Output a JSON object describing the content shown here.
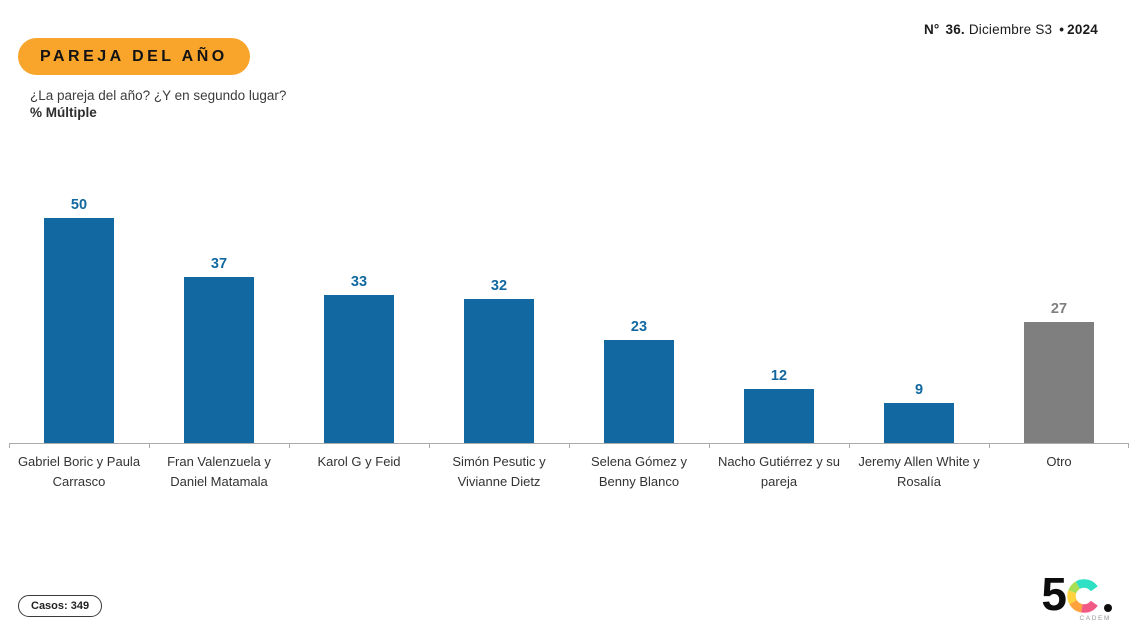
{
  "header": {
    "edition_no": "N°",
    "edition_num": "36.",
    "edition_period": "Diciembre S3",
    "edition_sep": "•",
    "edition_year": "2024",
    "badge": "PAREJA DEL AÑO",
    "question": "¿La pareja del año? ¿Y en segundo lugar?",
    "metric": "% Múltiple"
  },
  "chart_data": {
    "type": "bar",
    "title": "PAREJA DEL AÑO",
    "subtitle": "¿La pareja del año? ¿Y en segundo lugar? — % Múltiple",
    "categories": [
      "Gabriel Boric y Paula Carrasco",
      "Fran Valenzuela y Daniel Matamala",
      "Karol G y Feid",
      "Simón Pesutic y Vivianne Dietz",
      "Selena Gómez y Benny Blanco",
      "Nacho Gutiérrez y su pareja",
      "Jeremy Allen White y Rosalía",
      "Otro"
    ],
    "values": [
      50,
      37,
      33,
      32,
      23,
      12,
      9,
      27
    ],
    "bar_colors": [
      "#1268A0",
      "#1268A0",
      "#1268A0",
      "#1268A0",
      "#1268A0",
      "#1268A0",
      "#1268A0",
      "#7F7F7F"
    ],
    "value_label_colors": [
      "#1268A0",
      "#1268A0",
      "#1268A0",
      "#1268A0",
      "#1268A0",
      "#1268A0",
      "#1268A0",
      "#7F7F7F"
    ],
    "unit": "%",
    "ylim": [
      0,
      56
    ],
    "grid": false,
    "legend": false,
    "data_labels": true,
    "axis_color": "#ABABAB"
  },
  "footer": {
    "cases": "Casos: 349",
    "logo_five": "5",
    "logo_brand": "CADEM",
    "logo_colors": {
      "turquoise": "#2EE0C4",
      "lime": "#A9DF55",
      "yellow": "#FFD23E",
      "orange": "#FFA23C",
      "pink": "#F25A86",
      "black": "#0D0D0D"
    }
  },
  "colors": {
    "accent_blue": "#1268A0",
    "other_gray": "#7F7F7F",
    "badge_orange": "#F9A42B"
  }
}
